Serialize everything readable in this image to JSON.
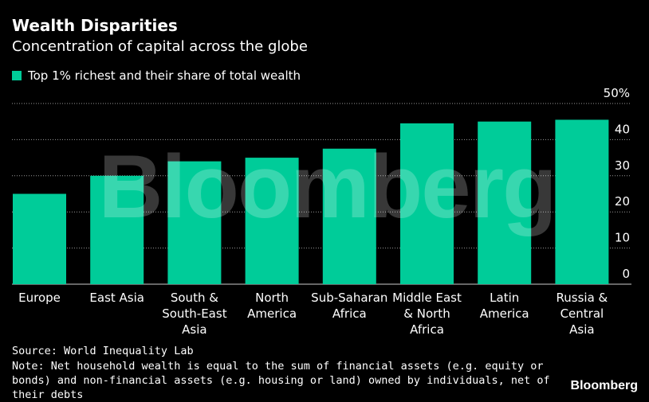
{
  "header": {
    "title": "Wealth Disparities",
    "subtitle": "Concentration of capital across the globe"
  },
  "legend": {
    "label": "Top 1% richest and their share of total wealth",
    "color": "#00cc99"
  },
  "footer": {
    "source": "Source: World Inequality Lab",
    "note": "Note: Net household wealth is equal to the sum of financial assets (e.g. equity or bonds) and non-financial assets (e.g. housing or land) owned by individuals, net of their debts",
    "brand": "Bloomberg"
  },
  "watermark": {
    "text": "Bloomberg"
  },
  "chart_data": {
    "type": "bar",
    "title": "Wealth Disparities",
    "subtitle": "Concentration of capital across the globe",
    "categories": [
      "Europe",
      "East Asia",
      "South & South-East Asia",
      "North America",
      "Sub-Saharan Africa",
      "Middle East & North Africa",
      "Latin America",
      "Russia & Central Asia"
    ],
    "category_lines": [
      [
        "Europe"
      ],
      [
        "East Asia"
      ],
      [
        "South &",
        "South-East",
        "Asia"
      ],
      [
        "North",
        "America"
      ],
      [
        "Sub-Saharan",
        "Africa"
      ],
      [
        "Middle East",
        "& North",
        "Africa"
      ],
      [
        "Latin",
        "America"
      ],
      [
        "Russia &",
        "Central",
        "Asia"
      ]
    ],
    "series": [
      {
        "name": "Top 1% richest and their share of total wealth",
        "values": [
          25,
          30,
          34,
          35,
          37.5,
          44.5,
          45,
          45.5
        ],
        "color": "#00cc99"
      }
    ],
    "yticks": [
      "0",
      "10",
      "20",
      "30",
      "40",
      "50%"
    ],
    "ylim": [
      0,
      50
    ],
    "grid": true,
    "y_axis_position": "right",
    "legend_position": "top-left"
  }
}
